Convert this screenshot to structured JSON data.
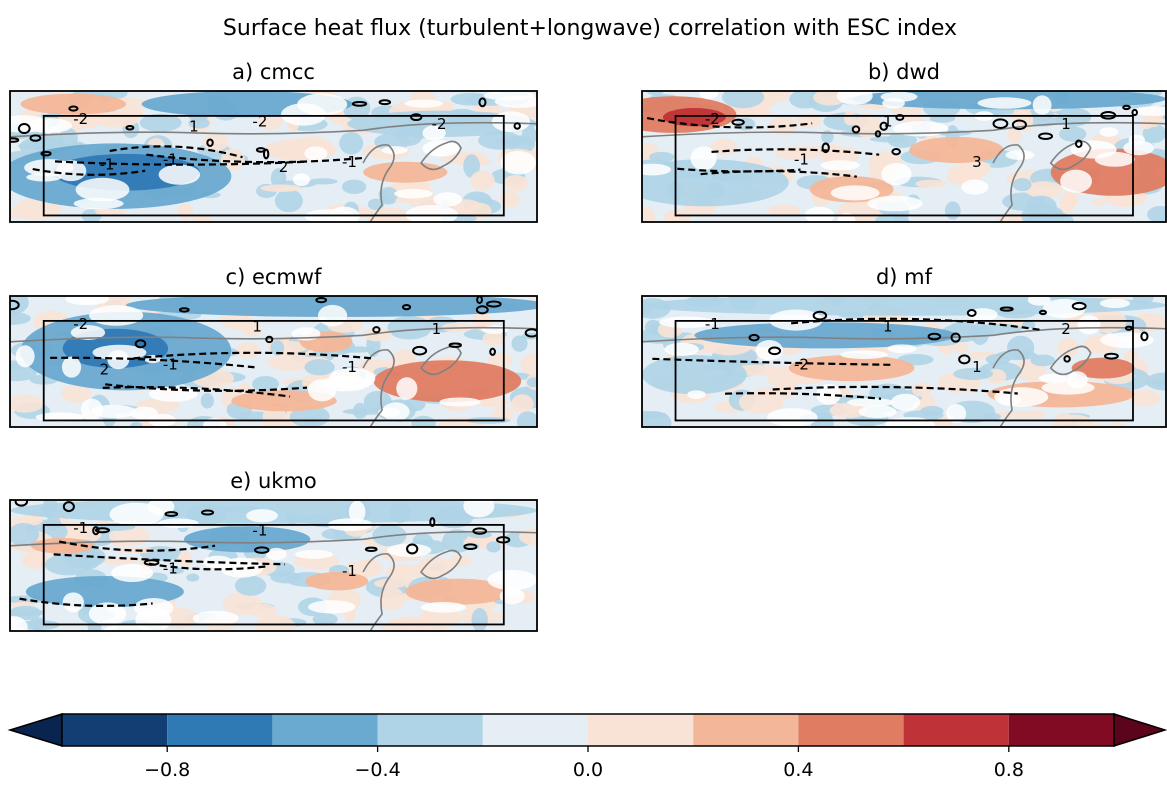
{
  "figure": {
    "title": "Surface heat flux (turbulent+longwave) correlation with ESC index"
  },
  "chart_data": {
    "type": "heatmap",
    "title": "Surface heat flux (turbulent+longwave) correlation with ESC index",
    "panels": [
      {
        "id": "a",
        "title": "a) cmcc",
        "contour_labels": [
          "-2",
          "-1",
          "-2",
          "-1",
          "-2",
          "-1",
          "1",
          "2"
        ]
      },
      {
        "id": "b",
        "title": "b) dwd",
        "contour_labels": [
          "-2",
          "-1",
          "1",
          "3",
          "1"
        ]
      },
      {
        "id": "c",
        "title": "c) ecmwf",
        "contour_labels": [
          "-2",
          "-1",
          "1",
          "-1",
          "1",
          "2"
        ]
      },
      {
        "id": "d",
        "title": "d) mf",
        "contour_labels": [
          "-1",
          "-2",
          "1",
          "1",
          "2"
        ]
      },
      {
        "id": "e",
        "title": "e) ukmo",
        "contour_labels": [
          "-1",
          "-1",
          "-1",
          "-1"
        ]
      }
    ],
    "colorbar": {
      "levels": [
        -1.0,
        -0.8,
        -0.6,
        -0.4,
        -0.2,
        0.0,
        0.2,
        0.4,
        0.6,
        0.8,
        1.0
      ],
      "colors": [
        "#123e74",
        "#2f79b5",
        "#6aa9d0",
        "#b0d4e7",
        "#e5eef5",
        "#f8e3d6",
        "#f4b698",
        "#e07c62",
        "#bf3237",
        "#800b22"
      ],
      "extend_low_color": "#0a2450",
      "extend_high_color": "#5c0419",
      "ticks": [
        -0.8,
        -0.4,
        0.0,
        0.4,
        0.8
      ],
      "tick_labels": [
        "−0.8",
        "−0.4",
        "0.0",
        "0.4",
        "0.8"
      ],
      "extend": "both"
    },
    "grid": false,
    "legend": "none"
  }
}
